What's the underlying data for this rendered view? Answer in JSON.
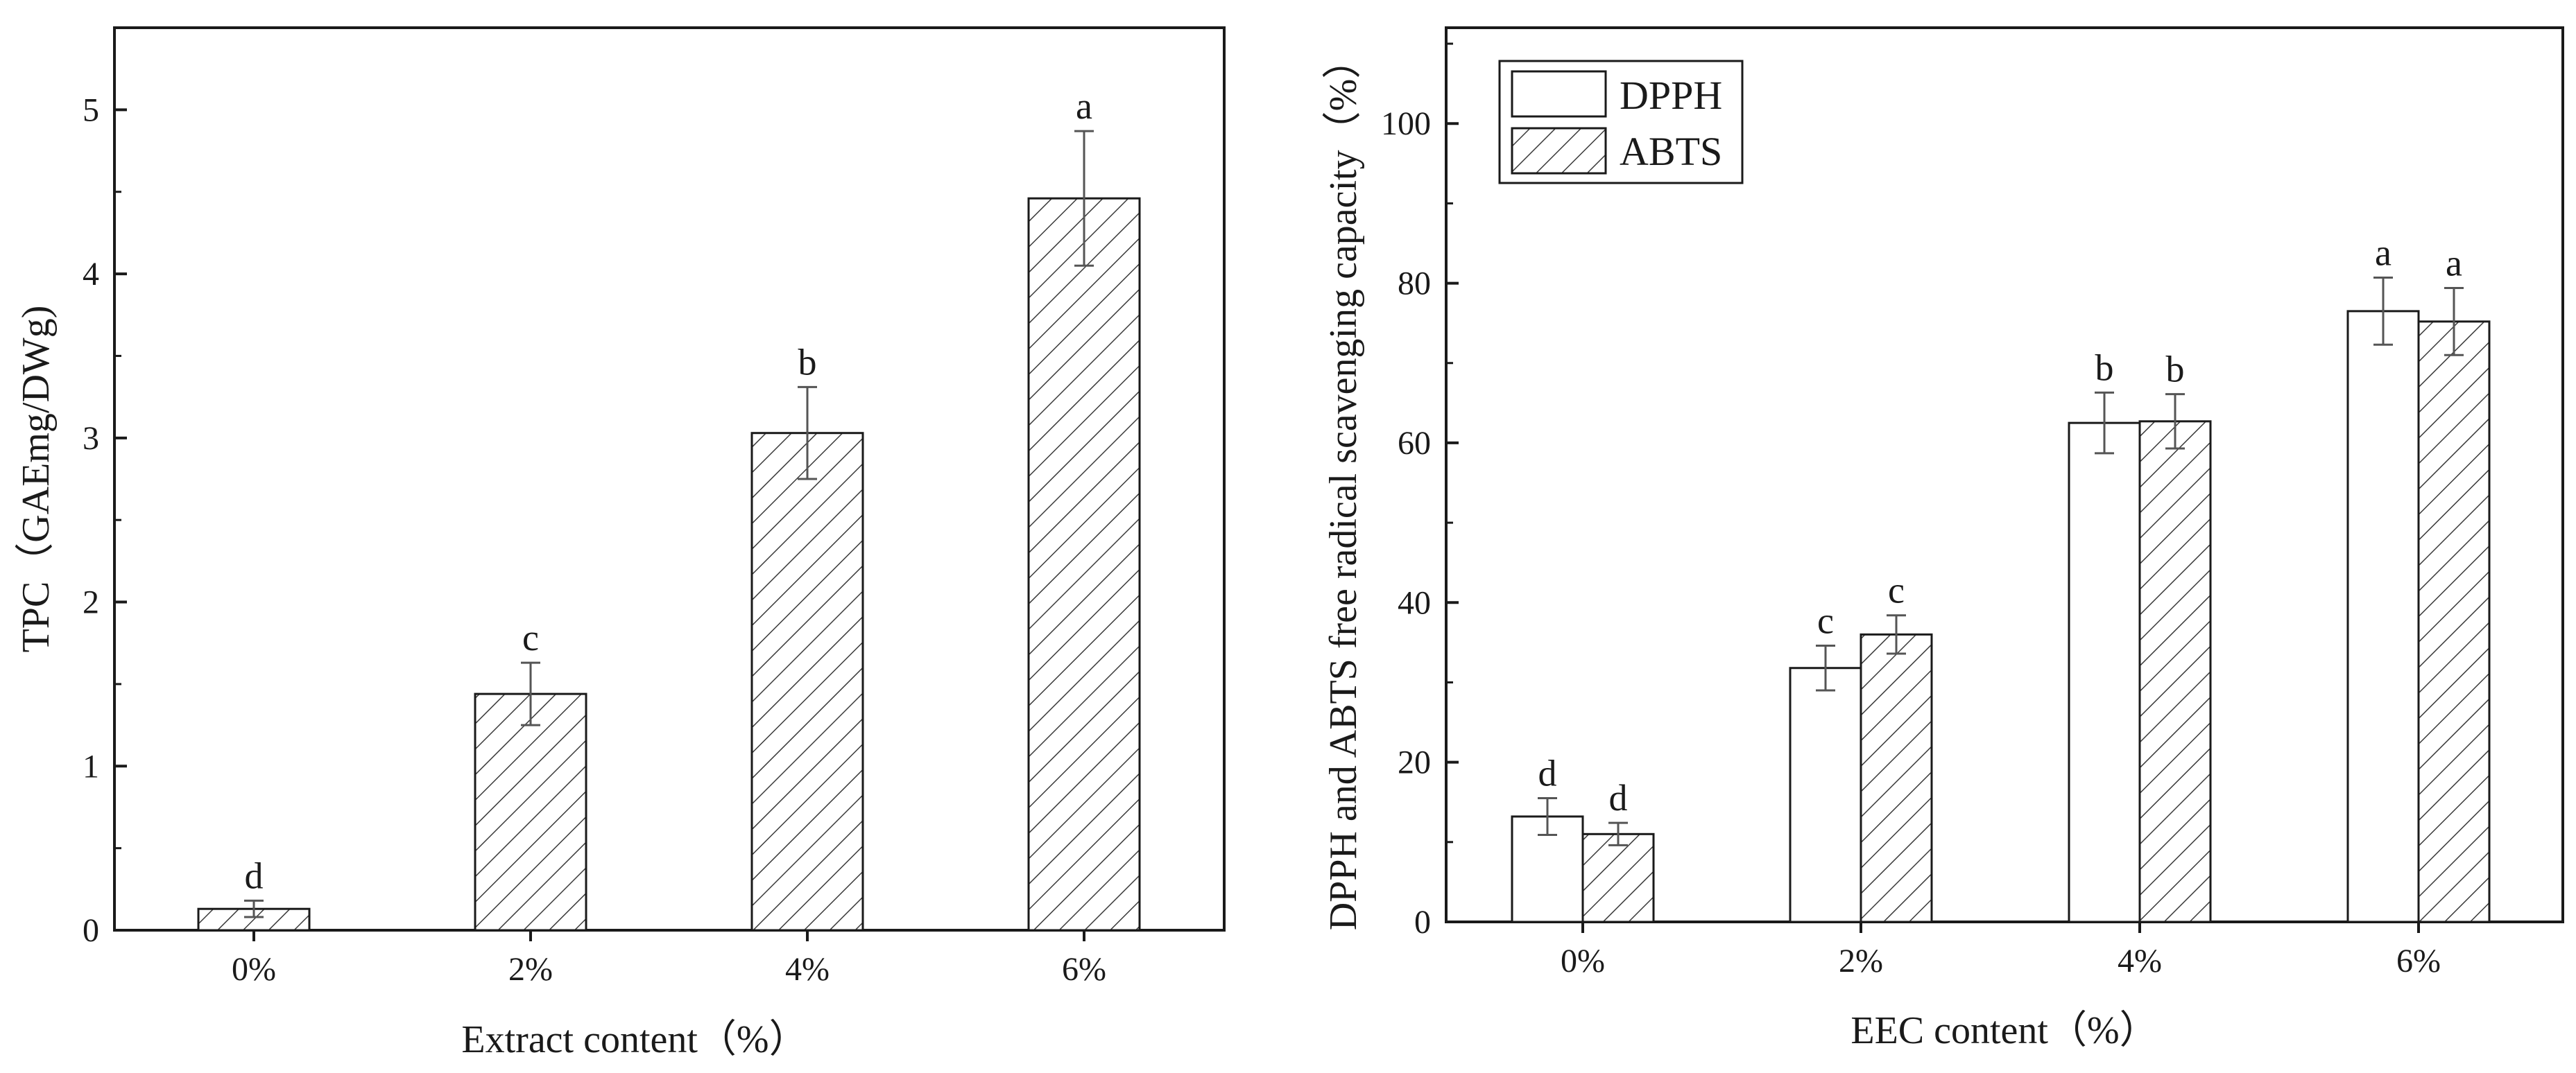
{
  "chart_data": [
    {
      "type": "bar",
      "xlabel": "Extract content（%）",
      "ylabel": "TPC（GAEmg/DWg)",
      "categories": [
        "0%",
        "2%",
        "4%",
        "6%"
      ],
      "ylim": [
        0,
        5.5
      ],
      "yticks": [
        "0",
        "1",
        "2",
        "3",
        "4",
        "5"
      ],
      "series": [
        {
          "pattern": "hatch",
          "values": [
            0.13,
            1.44,
            3.03,
            4.46
          ],
          "errors": [
            0.05,
            0.19,
            0.28,
            0.41
          ],
          "sig_labels": [
            "d",
            "c",
            "b",
            "a"
          ]
        }
      ],
      "grid": false
    },
    {
      "type": "bar",
      "xlabel": "EEC content（%）",
      "ylabel": "DPPH and ABTS free radical  scavenging capacity（%）",
      "categories": [
        "0%",
        "2%",
        "4%",
        "6%"
      ],
      "ylim": [
        0,
        112
      ],
      "yticks": [
        "0",
        "20",
        "40",
        "60",
        "80",
        "100"
      ],
      "legend_position": "top-left",
      "series": [
        {
          "name": "DPPH",
          "pattern": "open",
          "values": [
            13.2,
            31.8,
            62.5,
            76.5
          ],
          "errors": [
            2.3,
            2.8,
            3.8,
            4.2
          ],
          "sig_labels": [
            "d",
            "c",
            "b",
            "a"
          ]
        },
        {
          "name": "ABTS",
          "pattern": "hatch",
          "values": [
            11.0,
            36.0,
            62.7,
            75.2
          ],
          "errors": [
            1.4,
            2.4,
            3.4,
            4.2
          ],
          "sig_labels": [
            "d",
            "c",
            "b",
            "a"
          ]
        }
      ],
      "grid": false
    }
  ]
}
